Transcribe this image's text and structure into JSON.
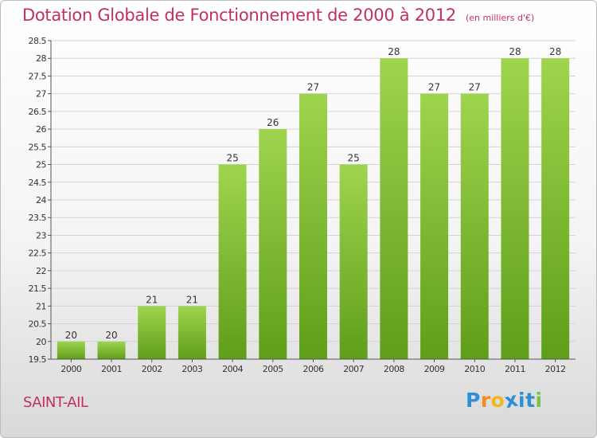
{
  "title": "Dotation Globale de Fonctionnement de 2000 à 2012",
  "unit": "(en milliers d'€)",
  "commune": "SAINT-AIL",
  "logo": {
    "letters": [
      "P",
      "r",
      "o",
      "x",
      "i",
      "t",
      "i"
    ],
    "colors": [
      "#2e8fd4",
      "#f28a1d",
      "#f2b71d",
      "#2e8fd4",
      "#2e8fd4",
      "#2e8fd4",
      "#7cc243"
    ]
  },
  "colors": {
    "bar_light": "#9fd44e",
    "bar_dark": "#5f9e19",
    "title": "#c0315d",
    "grid": "#d4d4d4",
    "axis": "#555555"
  },
  "chart_data": {
    "type": "bar",
    "title": "Dotation Globale de Fonctionnement de 2000 à 2012",
    "xlabel": "",
    "ylabel": "",
    "categories": [
      "2000",
      "2001",
      "2002",
      "2003",
      "2004",
      "2005",
      "2006",
      "2007",
      "2008",
      "2009",
      "2010",
      "2011",
      "2012"
    ],
    "values": [
      20,
      20,
      21,
      21,
      25,
      26,
      27,
      25,
      28,
      27,
      27,
      28,
      28
    ],
    "value_labels": [
      "20",
      "20",
      "21",
      "21",
      "25",
      "26",
      "27",
      "25",
      "28",
      "27",
      "27",
      "28",
      "28"
    ],
    "ylim": [
      19.5,
      28.5
    ],
    "yticks": [
      19.5,
      20,
      20.5,
      21,
      21.5,
      22,
      22.5,
      23,
      23.5,
      24,
      24.5,
      25,
      25.5,
      26,
      26.5,
      27,
      27.5,
      28,
      28.5
    ],
    "ytick_labels": [
      "19.5",
      "20",
      "20.5",
      "21",
      "21.5",
      "22",
      "22.5",
      "23",
      "23.5",
      "24",
      "24.5",
      "25",
      "25.5",
      "26",
      "26.5",
      "27",
      "27.5",
      "28",
      "28.5"
    ],
    "grid": true,
    "legend": "none"
  }
}
